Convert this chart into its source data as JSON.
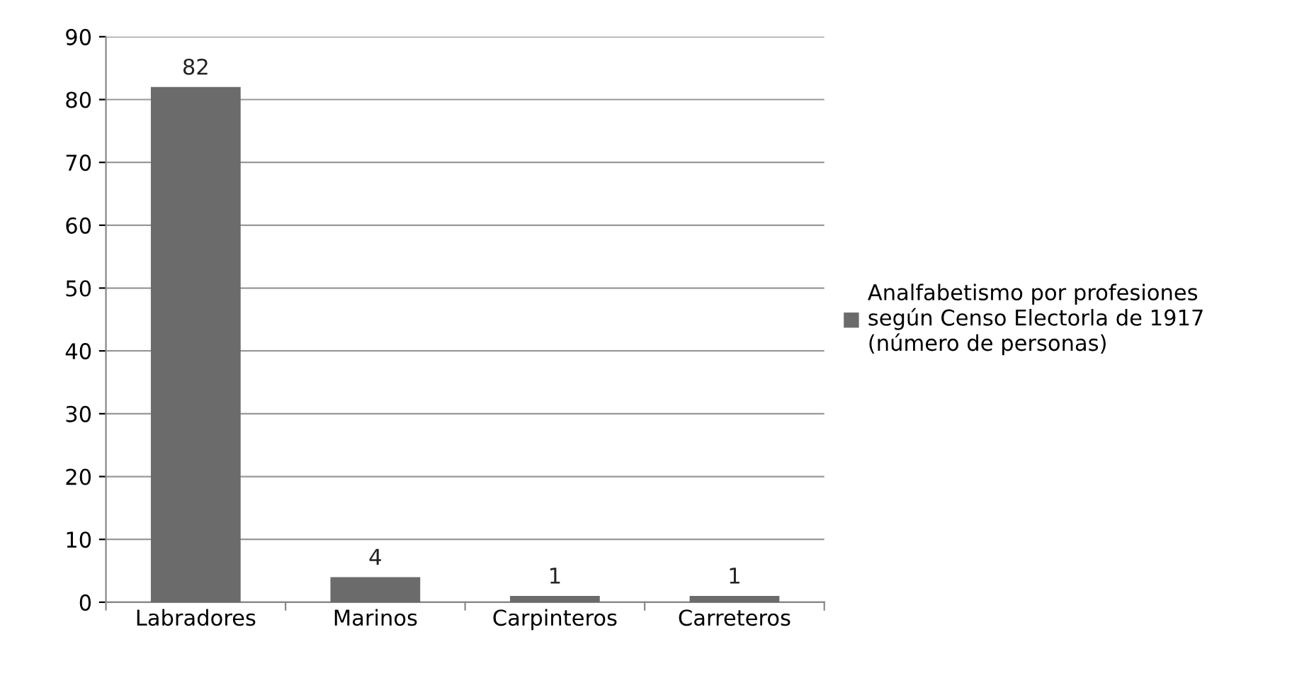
{
  "chart_data": {
    "type": "bar",
    "categories": [
      "Labradores",
      "Marinos",
      "Carpinteros",
      "Carreteros"
    ],
    "series": [
      {
        "name": "Analfabetismo por profesiones\nsegún Censo Electorla de 1917\n(número de personas)",
        "color": "#6b6b6b",
        "values": [
          82,
          4,
          1,
          1
        ]
      }
    ],
    "ylim": [
      0,
      90
    ],
    "yticks": [
      0,
      10,
      20,
      30,
      40,
      50,
      60,
      70,
      80,
      90
    ],
    "grid": "y",
    "legend": "right",
    "data_labels": true
  }
}
